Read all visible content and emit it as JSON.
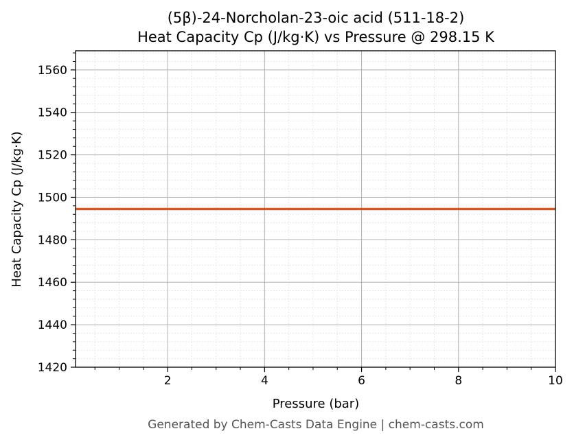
{
  "chart_data": {
    "type": "line",
    "title": "(5β)-24-Norcholan-23-oic acid (511-18-2)",
    "subtitle": "Heat Capacity Cp (J/kg·K) vs Pressure @ 298.15 K",
    "xlabel": "Pressure (bar)",
    "ylabel": "Heat Capacity Cp (J/kg·K)",
    "xlim": [
      0.1,
      10
    ],
    "ylim": [
      1420,
      1569
    ],
    "xticks": [
      2,
      4,
      6,
      8,
      10
    ],
    "yticks": [
      1420,
      1440,
      1460,
      1480,
      1500,
      1520,
      1540,
      1560
    ],
    "grid": true,
    "legend": "none",
    "series": [
      {
        "color": "#cc5a2b",
        "x": [
          0.1,
          1,
          2,
          3,
          4,
          5,
          6,
          7,
          8,
          9,
          10
        ],
        "y": [
          1494.5,
          1494.5,
          1494.5,
          1494.5,
          1494.5,
          1494.5,
          1494.5,
          1494.5,
          1494.5,
          1494.5,
          1494.5
        ]
      }
    ]
  },
  "footer": "Generated by Chem-Casts Data Engine | chem-casts.com"
}
